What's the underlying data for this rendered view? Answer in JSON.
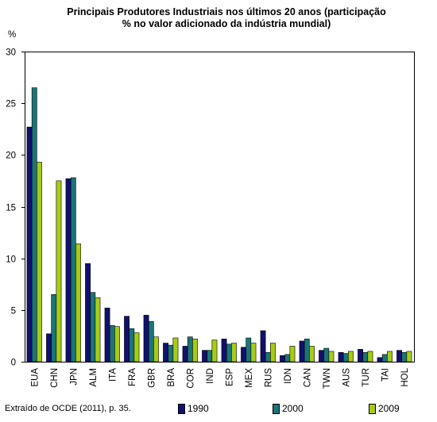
{
  "chart_data": {
    "type": "bar",
    "title_lines": [
      "Principais Produtores Industriais nos últimos 20 anos (participação",
      "% no valor adicionado da indústria mundial)"
    ],
    "ylabel": "%",
    "ylim": [
      0,
      30
    ],
    "yticks": [
      0,
      5,
      10,
      15,
      20,
      25,
      30
    ],
    "grid": false,
    "legend_position": "bottom",
    "categories": [
      "EUA",
      "CHN",
      "JPN",
      "ALM",
      "ITA",
      "FRA",
      "GBR",
      "BRA",
      "COR",
      "IND",
      "ESP",
      "MEX",
      "RUS",
      "IDN",
      "CAN",
      "TWN",
      "AUS",
      "TUR",
      "TAI",
      "HOL"
    ],
    "series": [
      {
        "name": "1990",
        "color": "#10106e",
        "values": [
          22.7,
          2.7,
          17.7,
          9.5,
          5.2,
          4.4,
          4.5,
          1.8,
          1.5,
          1.1,
          2.2,
          1.4,
          3.0,
          0.6,
          2.0,
          1.1,
          0.9,
          1.2,
          0.4,
          1.1
        ]
      },
      {
        "name": "2000",
        "color": "#1b7478",
        "values": [
          26.5,
          6.5,
          17.8,
          6.7,
          3.5,
          3.2,
          3.9,
          1.6,
          2.4,
          1.1,
          1.7,
          2.3,
          0.9,
          0.7,
          2.2,
          1.3,
          0.8,
          0.9,
          0.7,
          0.9
        ]
      },
      {
        "name": "2009",
        "color": "#a6cc18",
        "values": [
          19.3,
          17.5,
          11.4,
          6.2,
          3.4,
          2.8,
          2.4,
          2.3,
          2.2,
          2.1,
          1.8,
          1.8,
          1.8,
          1.5,
          1.5,
          1.0,
          1.0,
          1.0,
          1.0,
          1.0
        ]
      }
    ]
  },
  "source_note": "Extraído de OCDE (2011), p. 35."
}
